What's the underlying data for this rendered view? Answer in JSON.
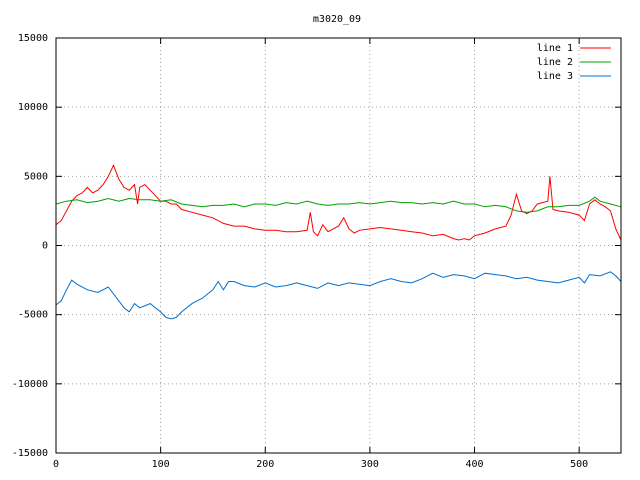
{
  "chart_data": {
    "type": "line",
    "title": "m3020_09",
    "xlabel": "",
    "ylabel": "",
    "xlim": [
      0,
      540
    ],
    "ylim": [
      -15000,
      15000
    ],
    "xticks": [
      0,
      100,
      200,
      300,
      400,
      500
    ],
    "yticks": [
      -15000,
      -10000,
      -5000,
      0,
      5000,
      10000,
      15000
    ],
    "grid": true,
    "legend_position": "top-right",
    "series": [
      {
        "name": "line 1",
        "color": "#ff0000",
        "x": [
          0,
          5,
          10,
          15,
          20,
          25,
          30,
          35,
          40,
          45,
          50,
          55,
          60,
          65,
          70,
          75,
          78,
          80,
          85,
          90,
          95,
          100,
          105,
          110,
          115,
          120,
          130,
          140,
          150,
          160,
          170,
          180,
          190,
          200,
          210,
          220,
          230,
          240,
          243,
          246,
          250,
          255,
          260,
          270,
          275,
          280,
          285,
          290,
          300,
          310,
          320,
          330,
          340,
          350,
          360,
          370,
          380,
          385,
          390,
          395,
          400,
          410,
          420,
          430,
          435,
          440,
          445,
          450,
          455,
          460,
          465,
          470,
          472,
          475,
          480,
          490,
          500,
          505,
          510,
          515,
          520,
          525,
          530,
          535,
          540
        ],
        "y": [
          1500,
          1800,
          2500,
          3200,
          3600,
          3800,
          4200,
          3800,
          4000,
          4400,
          5000,
          5800,
          4800,
          4200,
          4000,
          4400,
          3000,
          4200,
          4400,
          4000,
          3600,
          3200,
          3200,
          3000,
          3000,
          2600,
          2400,
          2200,
          2000,
          1600,
          1400,
          1400,
          1200,
          1100,
          1100,
          1000,
          1000,
          1100,
          2400,
          1000,
          700,
          1500,
          1000,
          1400,
          2000,
          1200,
          900,
          1100,
          1200,
          1300,
          1200,
          1100,
          1000,
          900,
          700,
          800,
          500,
          400,
          500,
          400,
          700,
          900,
          1200,
          1400,
          2200,
          3700,
          2500,
          2300,
          2500,
          3000,
          3100,
          3200,
          5000,
          2600,
          2500,
          2400,
          2200,
          1800,
          3000,
          3300,
          3000,
          2800,
          2500,
          1200,
          400
        ]
      },
      {
        "name": "line 2",
        "color": "#00a000",
        "x": [
          0,
          10,
          20,
          30,
          40,
          50,
          60,
          70,
          80,
          90,
          100,
          110,
          120,
          130,
          140,
          150,
          160,
          170,
          180,
          190,
          200,
          210,
          220,
          230,
          240,
          250,
          260,
          270,
          280,
          290,
          300,
          310,
          320,
          330,
          340,
          350,
          360,
          370,
          380,
          390,
          400,
          410,
          420,
          430,
          440,
          450,
          460,
          470,
          480,
          490,
          500,
          510,
          515,
          520,
          530,
          540
        ],
        "y": [
          3000,
          3200,
          3300,
          3100,
          3200,
          3400,
          3200,
          3400,
          3300,
          3300,
          3200,
          3300,
          3000,
          2900,
          2800,
          2900,
          2900,
          3000,
          2800,
          3000,
          3000,
          2900,
          3100,
          3000,
          3200,
          3000,
          2900,
          3000,
          3000,
          3100,
          3000,
          3100,
          3200,
          3100,
          3100,
          3000,
          3100,
          3000,
          3200,
          3000,
          3000,
          2800,
          2900,
          2800,
          2500,
          2400,
          2500,
          2800,
          2800,
          2900,
          2900,
          3200,
          3500,
          3200,
          3000,
          2800
        ]
      },
      {
        "name": "line 3",
        "color": "#0070d0",
        "x": [
          0,
          5,
          10,
          15,
          20,
          30,
          40,
          50,
          60,
          65,
          70,
          75,
          80,
          90,
          100,
          105,
          110,
          115,
          120,
          130,
          140,
          150,
          155,
          160,
          165,
          170,
          180,
          190,
          200,
          210,
          220,
          230,
          240,
          250,
          260,
          270,
          280,
          290,
          300,
          310,
          320,
          330,
          340,
          350,
          360,
          370,
          380,
          390,
          400,
          410,
          420,
          430,
          440,
          450,
          460,
          470,
          480,
          490,
          500,
          505,
          510,
          520,
          530,
          535,
          540
        ],
        "y": [
          -4300,
          -4000,
          -3200,
          -2500,
          -2800,
          -3200,
          -3400,
          -3000,
          -4000,
          -4500,
          -4800,
          -4200,
          -4500,
          -4200,
          -4800,
          -5200,
          -5300,
          -5200,
          -4800,
          -4200,
          -3800,
          -3200,
          -2600,
          -3200,
          -2600,
          -2600,
          -2900,
          -3000,
          -2700,
          -3000,
          -2900,
          -2700,
          -2900,
          -3100,
          -2700,
          -2900,
          -2700,
          -2800,
          -2900,
          -2600,
          -2400,
          -2600,
          -2700,
          -2400,
          -2000,
          -2300,
          -2100,
          -2200,
          -2400,
          -2000,
          -2100,
          -2200,
          -2400,
          -2300,
          -2500,
          -2600,
          -2700,
          -2500,
          -2300,
          -2700,
          -2100,
          -2200,
          -1900,
          -2200,
          -2600
        ]
      }
    ]
  }
}
